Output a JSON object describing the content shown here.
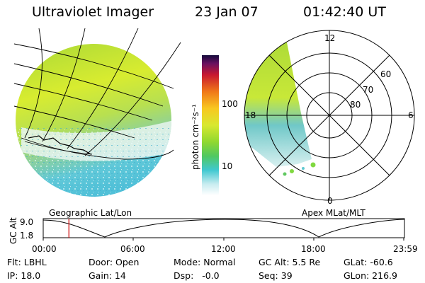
{
  "header": {
    "instrument": "Ultraviolet Imager",
    "date": "23 Jan 07",
    "time": "01:42:40 UT"
  },
  "colorbar": {
    "unit_label": "photon cm⁻²s⁻¹",
    "ticks": [
      "100",
      "10"
    ],
    "scale": "log"
  },
  "polar_plot": {
    "mlt_labels": [
      "12",
      "18",
      "6",
      "0"
    ],
    "lat_labels": [
      "60",
      "70",
      "80"
    ]
  },
  "orbit_panel": {
    "left_title": "Geographic Lat/Lon",
    "right_title": "Apex MLat/MLT",
    "y_axis_label": "GC Alt",
    "y_ticks": [
      "9.0",
      "1.8"
    ],
    "x_ticks": [
      "00:00",
      "06:00",
      "12:00",
      "18:00",
      "23:59"
    ],
    "current_time_marker_hours": 1.71
  },
  "footer": {
    "row1": [
      "Flt: LBHL",
      "Door: Open",
      "Mode: Normal",
      "GC Alt: 5.5 Re",
      "GLat: -60.6"
    ],
    "row2": [
      "IP: 18.0",
      "Gain: 14",
      "Dsp:   -0.0",
      "Seq: 39",
      "GLon: 216.9"
    ]
  },
  "colors": {
    "marker": "#cc0000",
    "grid": "#000000"
  }
}
